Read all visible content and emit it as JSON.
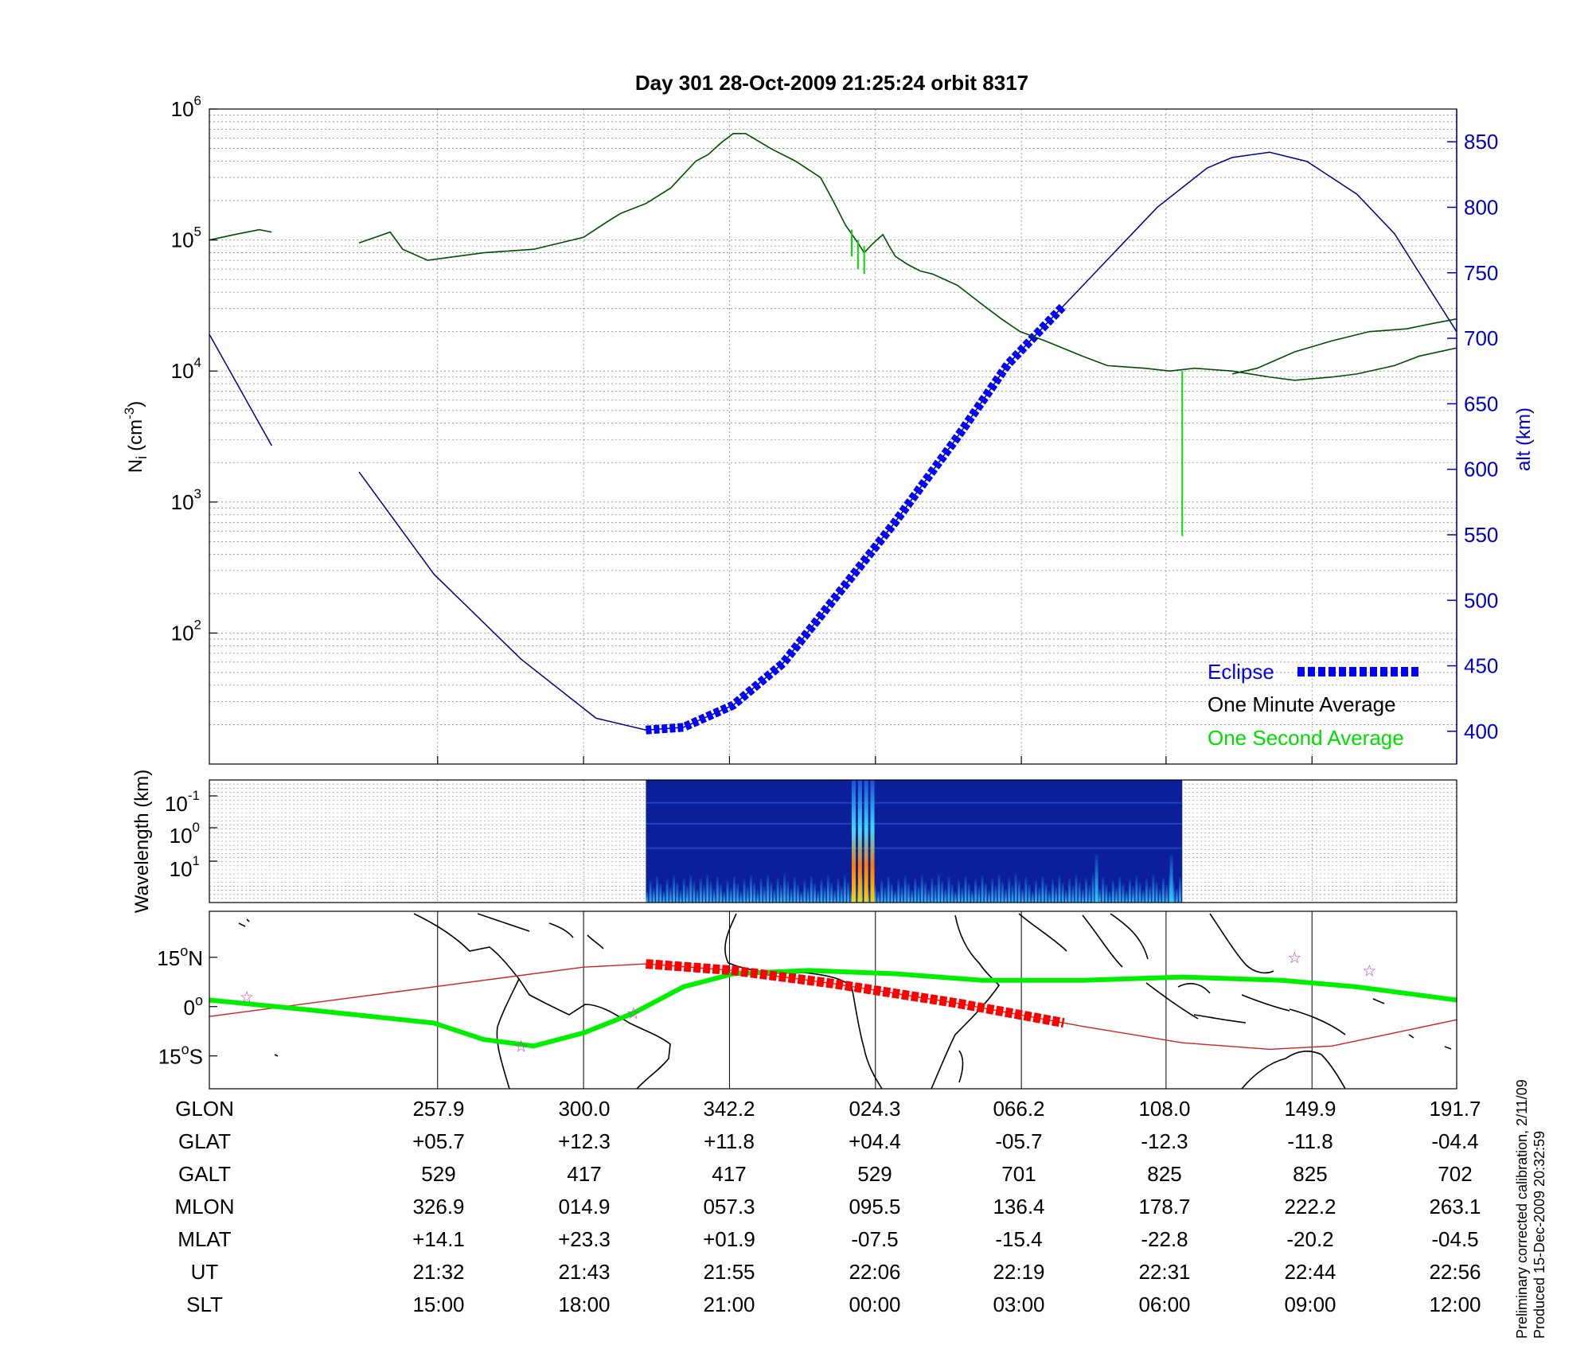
{
  "title": "Day 301  28-Oct-2009 21:25:24   orbit 8317",
  "side_note": {
    "line1": "Preliminary corrected calibration, 2/11/09",
    "line2": "Produced 15-Dec-2009 20:32:59"
  },
  "colors": {
    "axis_right": "#0000cc",
    "one_minute": "#004d00",
    "one_second": "#00dd00",
    "altitude": "#00008b",
    "eclipse": "#0000ff",
    "orbit_track": "#cc2222",
    "orbit_eclipse": "#ff0000",
    "magnetic_equator": "#00ee00",
    "star_marker": "#bb33bb"
  },
  "chart_data": [
    {
      "type": "line",
      "panel": "density",
      "x_range": [
        0,
        1
      ],
      "ylabel": "Ni (cm-3)",
      "ylabel_main": "N",
      "ylabel_sub": "i",
      "ylabel_unit": "(cm",
      "ylabel_exp": "-3",
      "ylabel_close": ")",
      "yscale": "log",
      "ylim": [
        10,
        1000000
      ],
      "yticks": [
        {
          "value": 100,
          "base": "10",
          "exp": "2"
        },
        {
          "value": 1000,
          "base": "10",
          "exp": "3"
        },
        {
          "value": 10000,
          "base": "10",
          "exp": "4"
        },
        {
          "value": 100000,
          "base": "10",
          "exp": "5"
        },
        {
          "value": 1000000,
          "base": "10",
          "exp": "6"
        }
      ],
      "y2label": "alt (km)",
      "y2lim": [
        375,
        875
      ],
      "y2ticks": [
        "400",
        "450",
        "500",
        "550",
        "600",
        "650",
        "700",
        "750",
        "800",
        "850"
      ],
      "grid": true,
      "legend": {
        "position": "bottom-right",
        "eclipse": "Eclipse",
        "one_minute": "One Minute Average",
        "one_second": "One Second Average"
      },
      "series": [
        {
          "name": "One Minute Average",
          "segments": [
            [
              [
                0.0,
                100000
              ],
              [
                0.02,
                110000
              ],
              [
                0.04,
                120000
              ],
              [
                0.05,
                115000
              ]
            ],
            [
              [
                0.12,
                95000
              ],
              [
                0.145,
                115000
              ],
              [
                0.155,
                85000
              ],
              [
                0.175,
                70000
              ],
              [
                0.22,
                80000
              ],
              [
                0.26,
                85000
              ],
              [
                0.3,
                105000
              ],
              [
                0.32,
                140000
              ],
              [
                0.33,
                160000
              ],
              [
                0.35,
                190000
              ],
              [
                0.37,
                250000
              ],
              [
                0.39,
                400000
              ],
              [
                0.4,
                450000
              ],
              [
                0.41,
                550000
              ],
              [
                0.42,
                650000
              ],
              [
                0.43,
                650000
              ],
              [
                0.45,
                500000
              ],
              [
                0.47,
                400000
              ],
              [
                0.49,
                300000
              ],
              [
                0.5,
                200000
              ],
              [
                0.51,
                130000
              ],
              [
                0.52,
                95000
              ],
              [
                0.525,
                80000
              ],
              [
                0.53,
                90000
              ],
              [
                0.535,
                100000
              ],
              [
                0.54,
                110000
              ],
              [
                0.545,
                90000
              ],
              [
                0.55,
                75000
              ],
              [
                0.56,
                65000
              ],
              [
                0.57,
                58000
              ],
              [
                0.58,
                55000
              ],
              [
                0.6,
                45000
              ],
              [
                0.62,
                32000
              ],
              [
                0.635,
                25000
              ],
              [
                0.65,
                20000
              ],
              [
                0.67,
                17000
              ],
              [
                0.7,
                13000
              ],
              [
                0.72,
                11000
              ],
              [
                0.75,
                10500
              ],
              [
                0.77,
                10000
              ],
              [
                0.79,
                10500
              ],
              [
                0.82,
                10000
              ],
              [
                0.85,
                9000
              ],
              [
                0.87,
                8500
              ],
              [
                0.9,
                9000
              ],
              [
                0.92,
                9500
              ],
              [
                0.95,
                11000
              ],
              [
                0.97,
                13000
              ],
              [
                1.0,
                15000
              ]
            ],
            [
              [
                0.82,
                9500
              ],
              [
                0.84,
                10500
              ],
              [
                0.87,
                14000
              ],
              [
                0.9,
                17000
              ],
              [
                0.93,
                20000
              ],
              [
                0.96,
                21000
              ],
              [
                0.98,
                23000
              ],
              [
                1.0,
                25000
              ]
            ]
          ]
        },
        {
          "name": "One Second Average",
          "spikes": [
            {
              "x": 0.515,
              "from": 120000,
              "to": 75000
            },
            {
              "x": 0.52,
              "from": 100000,
              "to": 60000
            },
            {
              "x": 0.525,
              "from": 90000,
              "to": 55000
            },
            {
              "x": 0.78,
              "from": 10000,
              "to": 550
            }
          ]
        },
        {
          "name": "Altitude",
          "axis": "right",
          "segments": [
            [
              [
                0.0,
                703
              ],
              [
                0.05,
                618
              ]
            ],
            [
              [
                0.12,
                598
              ],
              [
                0.18,
                520
              ],
              [
                0.25,
                455
              ],
              [
                0.31,
                410
              ],
              [
                0.35,
                401
              ],
              [
                0.38,
                403
              ],
              [
                0.42,
                420
              ],
              [
                0.46,
                452
              ],
              [
                0.5,
                500
              ],
              [
                0.55,
                560
              ],
              [
                0.6,
                625
              ],
              [
                0.64,
                680
              ],
              [
                0.7,
                740
              ],
              [
                0.76,
                800
              ],
              [
                0.8,
                830
              ],
              [
                0.82,
                838
              ],
              [
                0.85,
                842
              ],
              [
                0.88,
                835
              ],
              [
                0.92,
                810
              ],
              [
                0.95,
                780
              ],
              [
                0.98,
                735
              ],
              [
                1.0,
                705
              ]
            ]
          ]
        },
        {
          "name": "Eclipse",
          "axis": "right",
          "x_range": [
            0.35,
            0.685
          ]
        }
      ]
    },
    {
      "type": "heatmap",
      "panel": "spectrogram",
      "ylabel": "Wavelength (km)",
      "yscale": "log",
      "yticks": [
        {
          "base": "10",
          "exp": "-1"
        },
        {
          "base": "10",
          "exp": "0"
        },
        {
          "base": "10",
          "exp": "1"
        }
      ],
      "data_x_range": [
        0.35,
        0.78
      ],
      "bright_bands_x": [
        0.515,
        0.52,
        0.525,
        0.53,
        0.71,
        0.77
      ]
    },
    {
      "type": "map",
      "panel": "ground_track",
      "yticks": [
        {
          "value": 15,
          "label": "15",
          "suffix": "N"
        },
        {
          "value": 0,
          "label": "0",
          "suffix": ""
        },
        {
          "value": -15,
          "label": "15",
          "suffix": "S"
        }
      ],
      "ylim": [
        -25,
        29
      ],
      "orbit_track": [
        [
          0.0,
          -3
        ],
        [
          0.1,
          1
        ],
        [
          0.2,
          7
        ],
        [
          0.3,
          12
        ],
        [
          0.35,
          13
        ],
        [
          0.42,
          11
        ],
        [
          0.5,
          7
        ],
        [
          0.6,
          1
        ],
        [
          0.7,
          -6
        ],
        [
          0.78,
          -11
        ],
        [
          0.85,
          -13
        ],
        [
          0.9,
          -12
        ],
        [
          0.95,
          -8
        ],
        [
          1.0,
          -4
        ]
      ],
      "orbit_eclipse_x_range": [
        0.35,
        0.685
      ],
      "magnetic_equator": [
        [
          0.0,
          2
        ],
        [
          0.08,
          -1
        ],
        [
          0.18,
          -5
        ],
        [
          0.22,
          -10
        ],
        [
          0.26,
          -12
        ],
        [
          0.3,
          -8
        ],
        [
          0.34,
          -2
        ],
        [
          0.38,
          6
        ],
        [
          0.42,
          10
        ],
        [
          0.48,
          11
        ],
        [
          0.55,
          10
        ],
        [
          0.62,
          8
        ],
        [
          0.7,
          8
        ],
        [
          0.78,
          9
        ],
        [
          0.86,
          8
        ],
        [
          0.92,
          6
        ],
        [
          1.0,
          2
        ]
      ],
      "stars": [
        [
          0.03,
          3
        ],
        [
          0.25,
          -12
        ],
        [
          0.34,
          -2
        ],
        [
          0.87,
          15
        ],
        [
          0.93,
          11
        ]
      ]
    }
  ],
  "table": {
    "row_labels": [
      "GLON",
      "GLAT",
      "GALT",
      "MLON",
      "MLAT",
      "UT",
      "SLT"
    ],
    "columns": [
      [
        "257.9",
        "+05.7",
        "529",
        "326.9",
        "+14.1",
        "21:32",
        "15:00"
      ],
      [
        "300.0",
        "+12.3",
        "417",
        "014.9",
        "+23.3",
        "21:43",
        "18:00"
      ],
      [
        "342.2",
        "+11.8",
        "417",
        "057.3",
        "+01.9",
        "21:55",
        "21:00"
      ],
      [
        "024.3",
        "+04.4",
        "529",
        "095.5",
        "-07.5",
        "22:06",
        "00:00"
      ],
      [
        "066.2",
        "-05.7",
        "701",
        "136.4",
        "-15.4",
        "22:19",
        "03:00"
      ],
      [
        "108.0",
        "-12.3",
        "825",
        "178.7",
        "-22.8",
        "22:31",
        "06:00"
      ],
      [
        "149.9",
        "-11.8",
        "825",
        "222.2",
        "-20.2",
        "22:44",
        "09:00"
      ],
      [
        "191.7",
        "-04.4",
        "702",
        "263.1",
        "-04.5",
        "22:56",
        "12:00"
      ]
    ]
  }
}
